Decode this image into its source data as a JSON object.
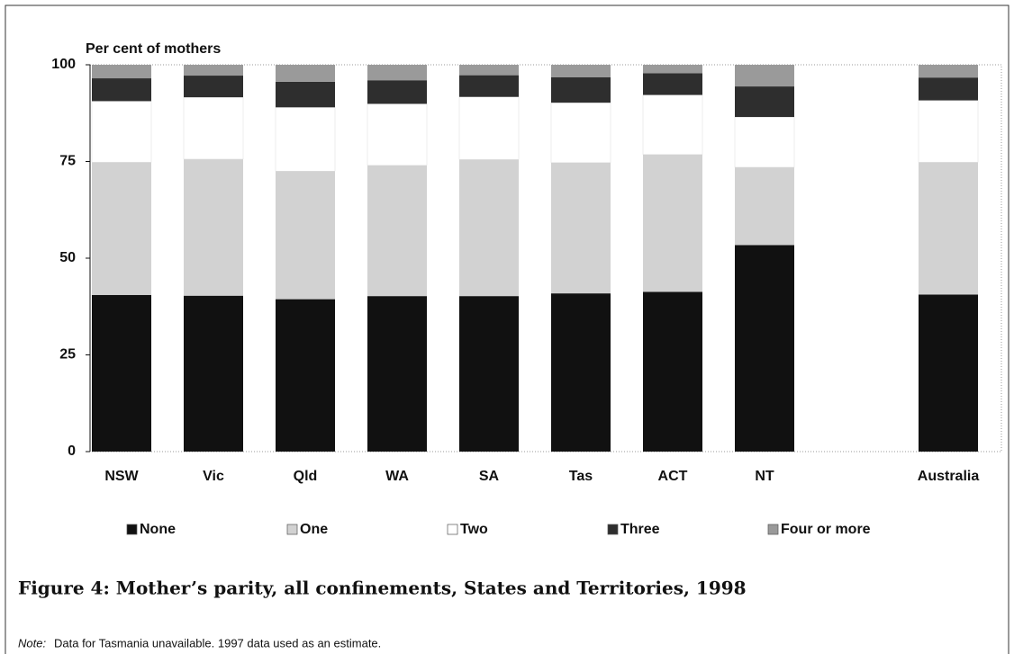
{
  "chart_data": {
    "type": "stacked_bar",
    "ylabel": "Per cent of mothers",
    "categories": [
      "NSW",
      "Vic",
      "Qld",
      "WA",
      "SA",
      "Tas",
      "ACT",
      "NT",
      null,
      "Australia"
    ],
    "series": [
      {
        "name": "None",
        "color": "#111111",
        "values": [
          40.5,
          40.3,
          39.4,
          40.2,
          40.2,
          40.9,
          41.3,
          53.4,
          null,
          40.6
        ]
      },
      {
        "name": "One",
        "color": "#d2d2d2",
        "values": [
          34.3,
          35.3,
          33.1,
          33.8,
          35.3,
          33.8,
          35.5,
          20.1,
          null,
          34.2
        ]
      },
      {
        "name": "Two",
        "color": "#ffffff",
        "values": [
          15.8,
          16.0,
          16.5,
          15.9,
          16.2,
          15.5,
          15.4,
          13.0,
          null,
          16.0
        ]
      },
      {
        "name": "Three",
        "color": "#2e2e2e",
        "values": [
          5.9,
          5.6,
          6.6,
          6.1,
          5.6,
          6.6,
          5.6,
          7.9,
          null,
          5.9
        ]
      },
      {
        "name": "Four or more",
        "color": "#9a9a9a",
        "values": [
          3.5,
          2.8,
          4.4,
          4.0,
          2.7,
          3.2,
          2.2,
          5.6,
          null,
          3.3
        ]
      }
    ],
    "ylim": [
      0,
      100
    ],
    "yticks": [
      0,
      25,
      50,
      75,
      100
    ],
    "grid": false,
    "caption": "Figure 4: Mother’s parity, all confinements, States and Territories, 1998",
    "note_label": "Note:",
    "note": "Data for Tasmania unavailable. 1997 data used as an estimate."
  }
}
